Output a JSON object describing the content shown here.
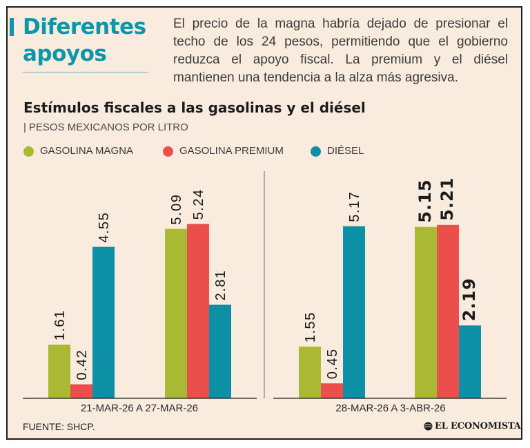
{
  "header": {
    "headline": "Diferentes apoyos",
    "intro": "El precio de la magna habría dejado de presionar el techo de los 24 pesos, permitiendo que el gobierno reduzca el apoyo fiscal. La premium y el diésel mantienen una tendencia a la alza más agresiva."
  },
  "chart_data": {
    "type": "bar",
    "title": "Estímulos fiscales a las gasolinas y el diésel",
    "units": "PESOS MEXICANOS POR LITRO",
    "ylim": [
      0,
      5.6
    ],
    "series": [
      {
        "name": "GASOLINA MAGNA",
        "color": "#aab934"
      },
      {
        "name": "GASOLINA PREMIUM",
        "color": "#ea4f4c"
      },
      {
        "name": "DIÉSEL",
        "color": "#0d8fa5"
      }
    ],
    "panels": [
      {
        "label": "21-MAR-26 A 27-MAR-26",
        "groups": [
          {
            "values": [
              "1.61",
              "0.42",
              "4.55"
            ]
          },
          {
            "values": [
              "5.09",
              "5.24",
              "2.81"
            ]
          }
        ],
        "bold": false
      },
      {
        "label": "28-MAR-26 A 3-ABR-26",
        "groups": [
          {
            "values": [
              "1.55",
              "0.45",
              "5.17"
            ]
          },
          {
            "values": [
              "5.15",
              "5.21",
              "2.19"
            ]
          }
        ],
        "bold_groups": [
          1
        ]
      }
    ]
  },
  "footer": {
    "source": "FUENTE: SHCP.",
    "brand": "EL ECONOMISTA",
    "brand_icon": "globe-icon"
  }
}
